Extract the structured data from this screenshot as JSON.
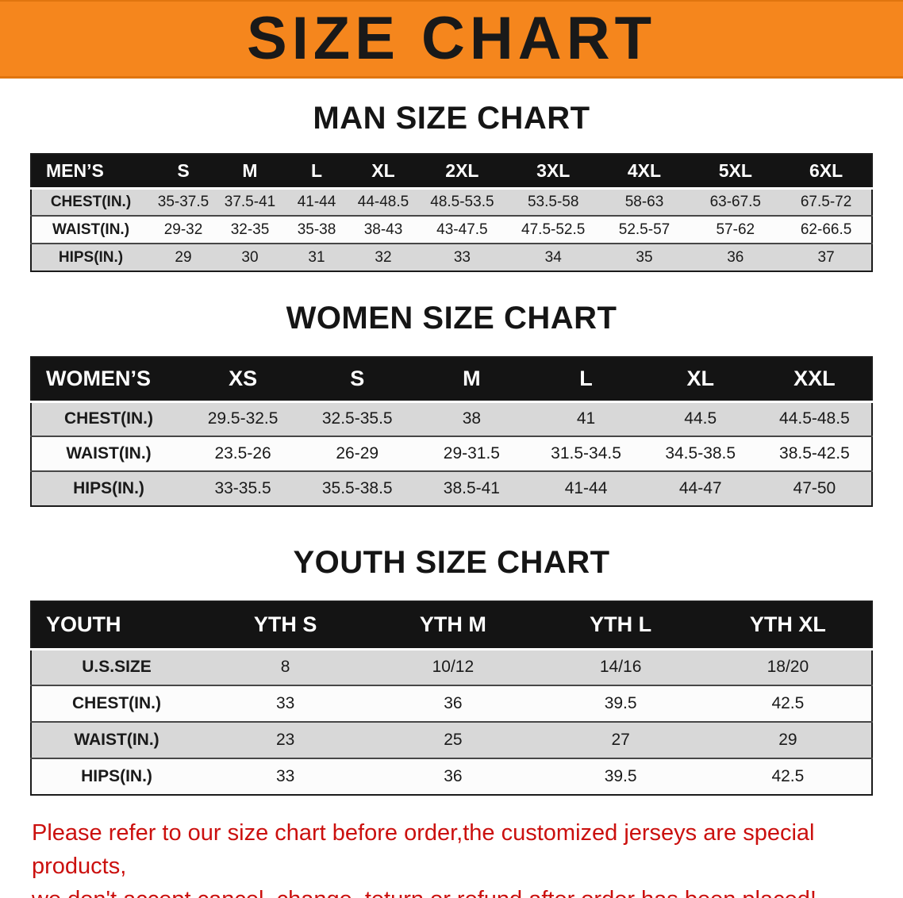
{
  "banner": {
    "title": "SIZE CHART"
  },
  "men": {
    "heading": "MAN SIZE CHART",
    "table": {
      "header": [
        "MEN’S",
        "S",
        "M",
        "L",
        "XL",
        "2XL",
        "3XL",
        "4XL",
        "5XL",
        "6XL"
      ],
      "rows": [
        [
          "CHEST(IN.)",
          "35-37.5",
          "37.5-41",
          "41-44",
          "44-48.5",
          "48.5-53.5",
          "53.5-58",
          "58-63",
          "63-67.5",
          "67.5-72"
        ],
        [
          "WAIST(IN.)",
          "29-32",
          "32-35",
          "35-38",
          "38-43",
          "43-47.5",
          "47.5-52.5",
          "52.5-57",
          "57-62",
          "62-66.5"
        ],
        [
          "HIPS(IN.)",
          "29",
          "30",
          "31",
          "32",
          "33",
          "34",
          "35",
          "36",
          "37"
        ]
      ]
    }
  },
  "women": {
    "heading": "WOMEN SIZE CHART",
    "table": {
      "header": [
        "WOMEN’S",
        "XS",
        "S",
        "M",
        "L",
        "XL",
        "XXL"
      ],
      "rows": [
        [
          "CHEST(IN.)",
          "29.5-32.5",
          "32.5-35.5",
          "38",
          "41",
          "44.5",
          "44.5-48.5"
        ],
        [
          "WAIST(IN.)",
          "23.5-26",
          "26-29",
          "29-31.5",
          "31.5-34.5",
          "34.5-38.5",
          "38.5-42.5"
        ],
        [
          "HIPS(IN.)",
          "33-35.5",
          "35.5-38.5",
          "38.5-41",
          "41-44",
          "44-47",
          "47-50"
        ]
      ]
    }
  },
  "youth": {
    "heading": "YOUTH SIZE CHART",
    "table": {
      "header": [
        "YOUTH",
        "YTH S",
        "YTH M",
        "YTH L",
        "YTH XL"
      ],
      "rows": [
        [
          "U.S.SIZE",
          "8",
          "10/12",
          "14/16",
          "18/20"
        ],
        [
          "CHEST(IN.)",
          "33",
          "36",
          "39.5",
          "42.5"
        ],
        [
          "WAIST(IN.)",
          "23",
          "25",
          "27",
          "29"
        ],
        [
          "HIPS(IN.)",
          "33",
          "36",
          "39.5",
          "42.5"
        ]
      ]
    }
  },
  "disclaimer": {
    "line1": "Please refer to our size chart before order,the customized jerseys are special products,",
    "line2": "we don't accept cancel, change, teturn or refund after order has been placed!"
  },
  "colors": {
    "banner_bg": "#f5861d",
    "header_bg": "#141414",
    "row_gray": "#d8d8d8",
    "row_white": "#fcfcfc",
    "disclaimer_red": "#cb100e"
  }
}
